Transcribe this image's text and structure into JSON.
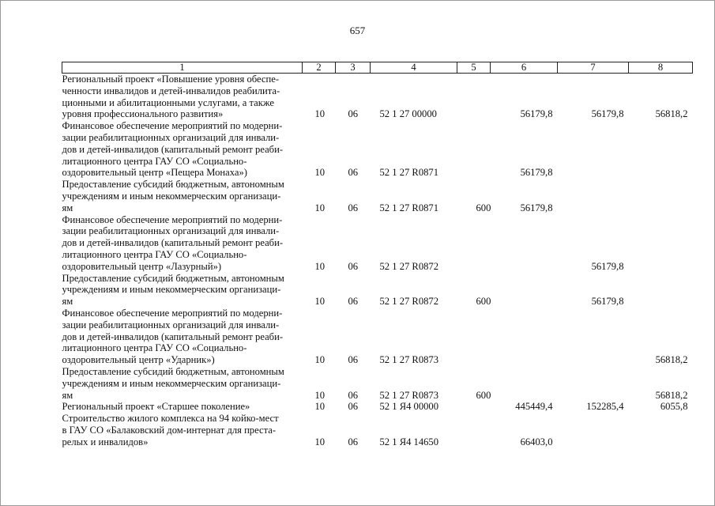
{
  "page_number": "657",
  "headers": [
    "1",
    "2",
    "3",
    "4",
    "5",
    "6",
    "7",
    "8"
  ],
  "rows": [
    {
      "text": "Региональный проект «Повышение уровня обеспеченности инвалидов и детей-инвалидов реабилитационными и абилитационными услугами, а также уровня профессионального развития»",
      "lines": [
        "Региональный проект «Повышение уровня обеспе-",
        "ченности инвалидов и детей-инвалидов реабилита-",
        "ционными и абилитационными услугами, а также",
        "уровня профессионального развития»"
      ],
      "c2": "10",
      "c3": "06",
      "c4": "52 1 27 00000",
      "c5": "",
      "c6": "56179,8",
      "c7": "56179,8",
      "c8": "56818,2"
    },
    {
      "lines": [
        "Финансовое обеспечение мероприятий по модерни-",
        "зации реабилитационных организаций для инвали-",
        "дов и детей-инвалидов (капитальный ремонт реаби-",
        "литационного центра ГАУ СО «Социально-",
        "оздоровительный центр «Пещера Монаха»)"
      ],
      "c2": "10",
      "c3": "06",
      "c4": "52 1 27 R0871",
      "c5": "",
      "c6": "56179,8",
      "c7": "",
      "c8": ""
    },
    {
      "lines": [
        "Предоставление субсидий бюджетным, автономным",
        "учреждениям и иным некоммерческим организаци-",
        "ям"
      ],
      "c2": "10",
      "c3": "06",
      "c4": "52 1 27 R0871",
      "c5": "600",
      "c6": "56179,8",
      "c7": "",
      "c8": ""
    },
    {
      "lines": [
        "Финансовое обеспечение мероприятий по модерни-",
        "зации реабилитационных организаций для инвали-",
        "дов и детей-инвалидов (капитальный ремонт реаби-",
        "литационного центра ГАУ СО «Социально-",
        "оздоровительный центр «Лазурный»)"
      ],
      "c2": "10",
      "c3": "06",
      "c4": "52 1 27 R0872",
      "c5": "",
      "c6": "",
      "c7": "56179,8",
      "c8": ""
    },
    {
      "lines": [
        "Предоставление субсидий бюджетным, автономным",
        "учреждениям и иным некоммерческим организаци-",
        "ям"
      ],
      "c2": "10",
      "c3": "06",
      "c4": "52 1 27 R0872",
      "c5": "600",
      "c6": "",
      "c7": "56179,8",
      "c8": ""
    },
    {
      "lines": [
        "Финансовое обеспечение мероприятий по модерни-",
        "зации реабилитационных организаций для инвали-",
        "дов и детей-инвалидов (капитальный ремонт реаби-",
        "литационного центра ГАУ СО «Социально-",
        "оздоровительный центр «Ударник»)"
      ],
      "c2": "10",
      "c3": "06",
      "c4": "52 1 27 R0873",
      "c5": "",
      "c6": "",
      "c7": "",
      "c8": "56818,2"
    },
    {
      "lines": [
        "Предоставление субсидий бюджетным, автономным",
        "учреждениям и иным некоммерческим организаци-",
        "ям"
      ],
      "c2": "10",
      "c3": "06",
      "c4": "52 1 27 R0873",
      "c5": "600",
      "c6": "",
      "c7": "",
      "c8": "56818,2"
    },
    {
      "lines": [
        "Региональный проект «Старшее поколение»"
      ],
      "c2": "10",
      "c3": "06",
      "c4": "52 1 Я4 00000",
      "c5": "",
      "c6": "445449,4",
      "c7": "152285,4",
      "c8": "6055,8"
    },
    {
      "lines": [
        "Строительство жилого комплекса на 94 койко-мест",
        "в ГАУ СО «Балаковский дом-интернат для преста-",
        "релых и инвалидов»"
      ],
      "c2": "10",
      "c3": "06",
      "c4": "52 1 Я4 14650",
      "c5": "",
      "c6": "66403,0",
      "c7": "",
      "c8": ""
    }
  ]
}
